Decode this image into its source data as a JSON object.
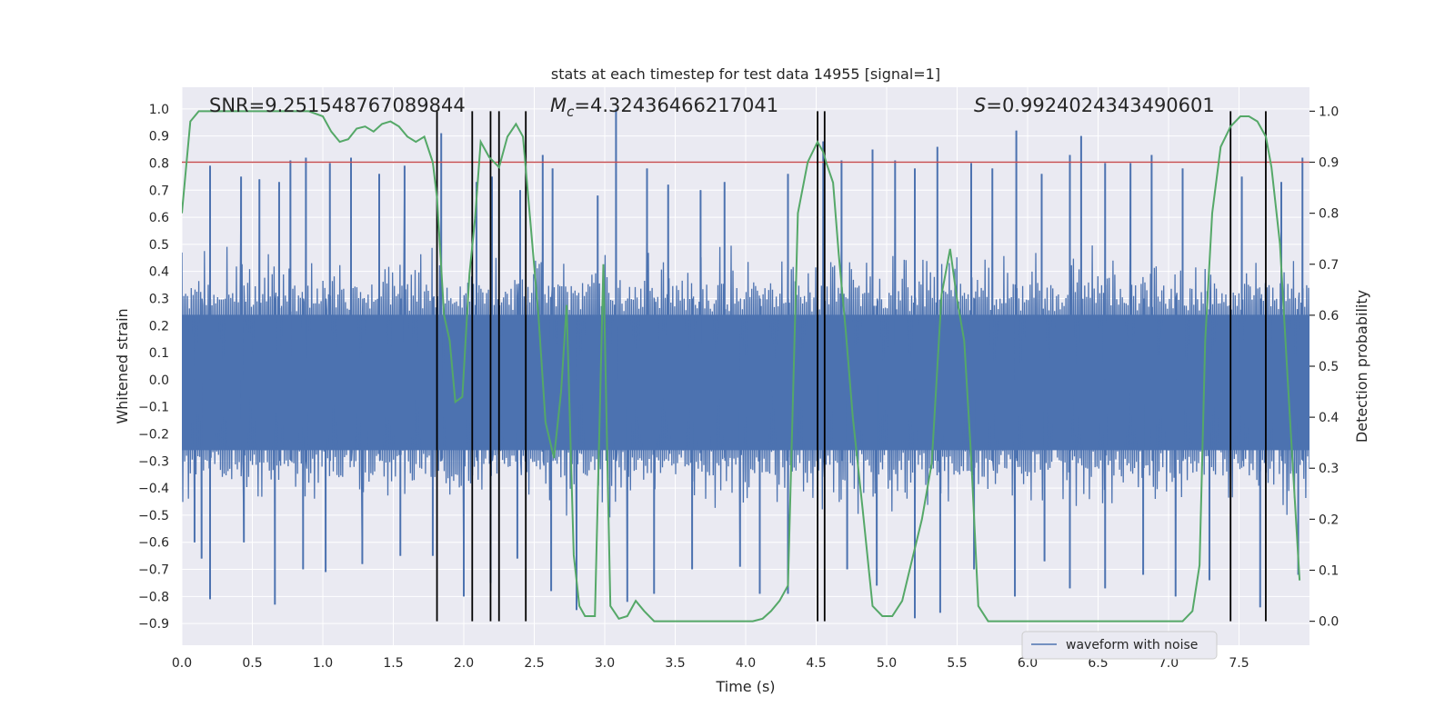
{
  "chart_data": {
    "type": "line",
    "title": "stats at each timestep for test data 14955 [signal=1]",
    "xlabel": "Time (s)",
    "ylabel": "Whitened strain",
    "y2label": "Detection probability",
    "xlim": [
      0,
      8
    ],
    "ylim": [
      -0.98,
      1.08
    ],
    "y2lim": [
      -0.047,
      1.047
    ],
    "xticks": [
      0.0,
      0.5,
      1.0,
      1.5,
      2.0,
      2.5,
      3.0,
      3.5,
      4.0,
      4.5,
      5.0,
      5.5,
      6.0,
      6.5,
      7.0,
      7.5
    ],
    "xtick_labels": [
      "0.0",
      "0.5",
      "1.0",
      "1.5",
      "2.0",
      "2.5",
      "3.0",
      "3.5",
      "4.0",
      "4.5",
      "5.0",
      "5.5",
      "6.0",
      "6.5",
      "7.0",
      "7.5"
    ],
    "yticks": [
      1.0,
      0.9,
      0.8,
      0.7,
      0.6,
      0.5,
      0.4,
      0.3,
      0.2,
      0.1,
      0.0,
      -0.1,
      -0.2,
      -0.3,
      -0.4,
      -0.5,
      -0.6,
      -0.7,
      -0.8,
      -0.9
    ],
    "ytick_labels": [
      "1.0",
      "0.9",
      "0.8",
      "0.7",
      "0.6",
      "0.5",
      "0.4",
      "0.3",
      "0.2",
      "0.1",
      "0.0",
      "−0.1",
      "−0.2",
      "−0.3",
      "−0.4",
      "−0.5",
      "−0.6",
      "−0.7",
      "−0.8",
      "−0.9"
    ],
    "y2ticks": [
      1.0,
      0.9,
      0.8,
      0.7,
      0.6,
      0.5,
      0.4,
      0.3,
      0.2,
      0.1,
      0.0
    ],
    "y2tick_labels": [
      "1.0",
      "0.9",
      "0.8",
      "0.7",
      "0.6",
      "0.5",
      "0.4",
      "0.3",
      "0.2",
      "0.1",
      "0.0"
    ],
    "annotations": {
      "snr": "SNR=9.251548767089844",
      "mc_symbol": "M",
      "mc_sub": "c",
      "mc_value": "=4.32436466217041",
      "s_symbol": "S",
      "s_value": "=0.9924024343490601"
    },
    "legend": {
      "label": "waveform with noise",
      "location": "lower-right"
    },
    "threshold": {
      "axis": "y2",
      "value": 0.9,
      "color": "#c44e52"
    },
    "event_lines": [
      1.81,
      2.06,
      2.19,
      2.25,
      2.44,
      4.51,
      4.56,
      7.44,
      7.69
    ],
    "waveform": {
      "name": "waveform with noise",
      "color": "#4c72b0",
      "band_low": -0.36,
      "band_high": 0.36,
      "sample_rate_display": 1200,
      "peaks": [
        {
          "t": 0.2,
          "v": 0.79
        },
        {
          "t": 0.42,
          "v": 0.75
        },
        {
          "t": 0.55,
          "v": 0.74
        },
        {
          "t": 0.69,
          "v": 0.73
        },
        {
          "t": 0.77,
          "v": 0.81
        },
        {
          "t": 0.88,
          "v": 0.82
        },
        {
          "t": 1.05,
          "v": 0.8
        },
        {
          "t": 1.2,
          "v": 0.82
        },
        {
          "t": 1.4,
          "v": 0.76
        },
        {
          "t": 1.58,
          "v": 0.79
        },
        {
          "t": 1.84,
          "v": 0.91
        },
        {
          "t": 2.09,
          "v": 0.73
        },
        {
          "t": 2.2,
          "v": 0.75
        },
        {
          "t": 2.4,
          "v": 0.7
        },
        {
          "t": 2.56,
          "v": 0.83
        },
        {
          "t": 2.63,
          "v": 0.78
        },
        {
          "t": 2.95,
          "v": 0.68
        },
        {
          "t": 3.08,
          "v": 1.0
        },
        {
          "t": 3.3,
          "v": 0.78
        },
        {
          "t": 3.45,
          "v": 0.72
        },
        {
          "t": 3.68,
          "v": 0.7
        },
        {
          "t": 3.85,
          "v": 0.73
        },
        {
          "t": 4.3,
          "v": 0.76
        },
        {
          "t": 4.55,
          "v": 0.88
        },
        {
          "t": 4.68,
          "v": 0.81
        },
        {
          "t": 4.9,
          "v": 0.85
        },
        {
          "t": 5.06,
          "v": 0.81
        },
        {
          "t": 5.2,
          "v": 0.78
        },
        {
          "t": 5.36,
          "v": 0.86
        },
        {
          "t": 5.6,
          "v": 0.8
        },
        {
          "t": 5.75,
          "v": 0.78
        },
        {
          "t": 5.92,
          "v": 0.92
        },
        {
          "t": 6.1,
          "v": 0.76
        },
        {
          "t": 6.3,
          "v": 0.83
        },
        {
          "t": 6.38,
          "v": 0.9
        },
        {
          "t": 6.55,
          "v": 0.8
        },
        {
          "t": 6.73,
          "v": 0.8
        },
        {
          "t": 6.88,
          "v": 0.83
        },
        {
          "t": 7.1,
          "v": 0.78
        },
        {
          "t": 7.52,
          "v": 0.75
        },
        {
          "t": 7.8,
          "v": 0.73
        },
        {
          "t": 7.95,
          "v": 0.82
        }
      ],
      "troughs": [
        {
          "t": 0.09,
          "v": -0.6
        },
        {
          "t": 0.14,
          "v": -0.66
        },
        {
          "t": 0.2,
          "v": -0.81
        },
        {
          "t": 0.44,
          "v": -0.6
        },
        {
          "t": 0.66,
          "v": -0.83
        },
        {
          "t": 0.86,
          "v": -0.7
        },
        {
          "t": 1.02,
          "v": -0.71
        },
        {
          "t": 1.28,
          "v": -0.68
        },
        {
          "t": 1.55,
          "v": -0.65
        },
        {
          "t": 1.78,
          "v": -0.65
        },
        {
          "t": 2.0,
          "v": -0.8
        },
        {
          "t": 2.19,
          "v": -0.75
        },
        {
          "t": 2.38,
          "v": -0.66
        },
        {
          "t": 2.62,
          "v": -0.78
        },
        {
          "t": 2.8,
          "v": -0.85
        },
        {
          "t": 3.16,
          "v": -0.82
        },
        {
          "t": 3.35,
          "v": -0.79
        },
        {
          "t": 3.62,
          "v": -0.7
        },
        {
          "t": 3.96,
          "v": -0.69
        },
        {
          "t": 4.1,
          "v": -0.79
        },
        {
          "t": 4.3,
          "v": -0.79
        },
        {
          "t": 4.72,
          "v": -0.7
        },
        {
          "t": 4.93,
          "v": -0.76
        },
        {
          "t": 5.2,
          "v": -0.88
        },
        {
          "t": 5.38,
          "v": -0.86
        },
        {
          "t": 5.62,
          "v": -0.7
        },
        {
          "t": 5.91,
          "v": -0.8
        },
        {
          "t": 6.12,
          "v": -0.67
        },
        {
          "t": 6.3,
          "v": -0.77
        },
        {
          "t": 6.55,
          "v": -0.77
        },
        {
          "t": 6.82,
          "v": -0.72
        },
        {
          "t": 7.05,
          "v": -0.8
        },
        {
          "t": 7.29,
          "v": -0.74
        },
        {
          "t": 7.65,
          "v": -0.84
        },
        {
          "t": 7.92,
          "v": -0.72
        }
      ]
    },
    "probability": {
      "name": "detection probability",
      "color": "#55a868",
      "x": [
        0.0,
        0.06,
        0.12,
        0.2,
        0.3,
        0.4,
        0.5,
        0.6,
        0.7,
        0.8,
        0.9,
        1.0,
        1.06,
        1.12,
        1.18,
        1.24,
        1.3,
        1.36,
        1.42,
        1.48,
        1.54,
        1.6,
        1.66,
        1.72,
        1.78,
        1.81,
        1.86,
        1.9,
        1.94,
        1.99,
        2.04,
        2.08,
        2.12,
        2.18,
        2.25,
        2.31,
        2.37,
        2.42,
        2.47,
        2.53,
        2.58,
        2.64,
        2.69,
        2.73,
        2.78,
        2.82,
        2.86,
        2.93,
        2.99,
        3.04,
        3.1,
        3.16,
        3.22,
        3.28,
        3.35,
        3.45,
        3.55,
        3.65,
        3.75,
        3.85,
        3.95,
        4.05,
        4.12,
        4.18,
        4.24,
        4.3,
        4.37,
        4.44,
        4.51,
        4.55,
        4.57,
        4.62,
        4.66,
        4.71,
        4.76,
        4.83,
        4.9,
        4.97,
        5.04,
        5.11,
        5.18,
        5.25,
        5.32,
        5.39,
        5.45,
        5.5,
        5.55,
        5.6,
        5.65,
        5.72,
        5.8,
        5.9,
        6.0,
        6.1,
        6.2,
        6.3,
        6.4,
        6.5,
        6.6,
        6.7,
        6.8,
        6.9,
        7.0,
        7.1,
        7.17,
        7.22,
        7.26,
        7.31,
        7.37,
        7.44,
        7.51,
        7.57,
        7.63,
        7.69,
        7.73,
        7.79,
        7.85,
        7.93
      ],
      "y": [
        0.8,
        0.98,
        1.0,
        1.0,
        1.0,
        1.0,
        1.0,
        1.0,
        1.0,
        1.0,
        1.0,
        0.99,
        0.96,
        0.94,
        0.945,
        0.966,
        0.97,
        0.96,
        0.975,
        0.98,
        0.97,
        0.95,
        0.94,
        0.95,
        0.9,
        0.83,
        0.6,
        0.55,
        0.43,
        0.44,
        0.68,
        0.79,
        0.94,
        0.91,
        0.89,
        0.95,
        0.975,
        0.95,
        0.79,
        0.6,
        0.39,
        0.32,
        0.45,
        0.62,
        0.13,
        0.03,
        0.01,
        0.01,
        0.7,
        0.03,
        0.005,
        0.01,
        0.04,
        0.02,
        0.0,
        0.0,
        0.0,
        0.0,
        0.0,
        0.0,
        0.0,
        0.0,
        0.005,
        0.02,
        0.04,
        0.07,
        0.8,
        0.9,
        0.94,
        0.92,
        0.9,
        0.86,
        0.72,
        0.57,
        0.4,
        0.22,
        0.03,
        0.01,
        0.01,
        0.04,
        0.12,
        0.2,
        0.31,
        0.64,
        0.73,
        0.63,
        0.55,
        0.32,
        0.03,
        0.0,
        0.0,
        0.0,
        0.0,
        0.0,
        0.0,
        0.0,
        0.0,
        0.0,
        0.0,
        0.0,
        0.0,
        0.0,
        0.0,
        0.0,
        0.02,
        0.11,
        0.55,
        0.8,
        0.93,
        0.97,
        0.99,
        0.99,
        0.98,
        0.95,
        0.89,
        0.74,
        0.45,
        0.08
      ]
    }
  }
}
